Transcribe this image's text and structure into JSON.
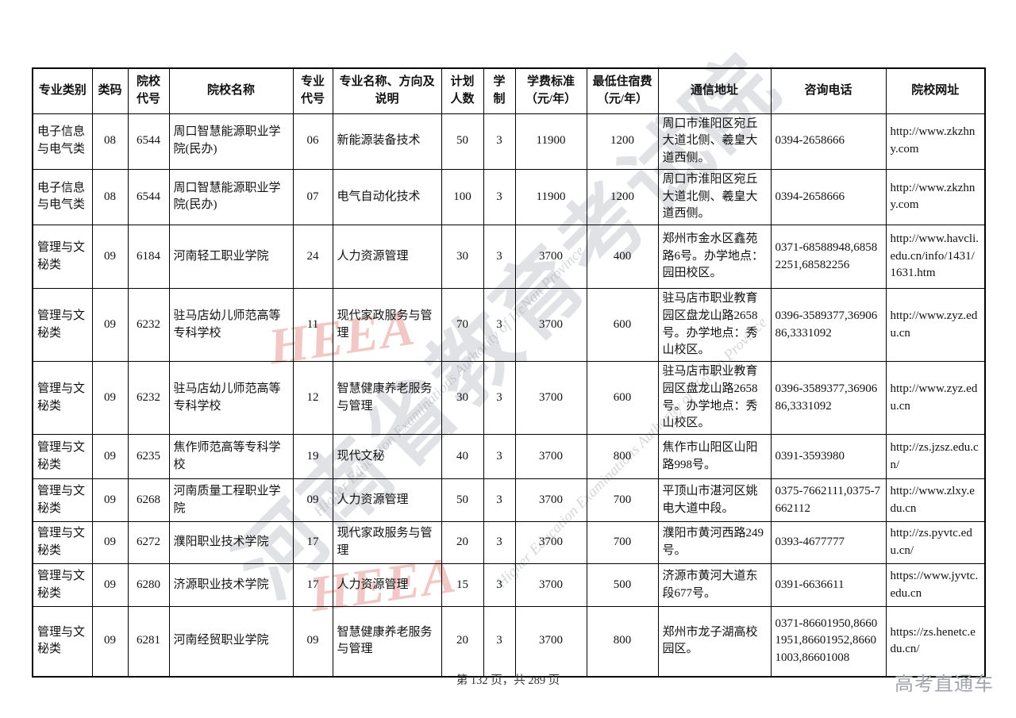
{
  "table": {
    "headers": [
      "专业类别",
      "类码",
      "院校代号",
      "院校名称",
      "专业代号",
      "专业名称、方向及说明",
      "计划人数",
      "学制",
      "学费标准（元/年）",
      "最低住宿费（元/年）",
      "通信地址",
      "咨询电话",
      "院校网址"
    ],
    "rows": [
      [
        "电子信息与电气类",
        "08",
        "6544",
        "周口智慧能源职业学院(民办)",
        "06",
        "新能源装备技术",
        "50",
        "3",
        "11900",
        "1200",
        "周口市淮阳区宛丘大道北侧、羲皇大道西侧。",
        "0394-2658666",
        "http://www.zkzhny.com"
      ],
      [
        "电子信息与电气类",
        "08",
        "6544",
        "周口智慧能源职业学院(民办)",
        "07",
        "电气自动化技术",
        "100",
        "3",
        "11900",
        "1200",
        "周口市淮阳区宛丘大道北侧、羲皇大道西侧。",
        "0394-2658666",
        "http://www.zkzhny.com"
      ],
      [
        "管理与文秘类",
        "09",
        "6184",
        "河南轻工职业学院",
        "24",
        "人力资源管理",
        "30",
        "3",
        "3700",
        "400",
        "郑州市金水区鑫苑路6号。办学地点：园田校区。",
        "0371-68588948,68582251,68582256",
        "http://www.havcli.edu.cn/info/1431/1631.htm"
      ],
      [
        "管理与文秘类",
        "09",
        "6232",
        "驻马店幼儿师范高等专科学校",
        "11",
        "现代家政服务与管理",
        "70",
        "3",
        "3700",
        "600",
        "驻马店市职业教育园区盘龙山路2658号。办学地点：秀山校区。",
        "0396-3589377,3690686,3331092",
        "http://www.zyz.edu.cn"
      ],
      [
        "管理与文秘类",
        "09",
        "6232",
        "驻马店幼儿师范高等专科学校",
        "12",
        "智慧健康养老服务与管理",
        "30",
        "3",
        "3700",
        "600",
        "驻马店市职业教育园区盘龙山路2658号。办学地点：秀山校区。",
        "0396-3589377,3690686,3331092",
        "http://www.zyz.edu.cn"
      ],
      [
        "管理与文秘类",
        "09",
        "6235",
        "焦作师范高等专科学校",
        "19",
        "现代文秘",
        "40",
        "3",
        "3700",
        "800",
        "焦作市山阳区山阳路998号。",
        "0391-3593980",
        "http://zs.jzsz.edu.cn/"
      ],
      [
        "管理与文秘类",
        "09",
        "6268",
        "河南质量工程职业学院",
        "09",
        "人力资源管理",
        "50",
        "3",
        "3700",
        "700",
        "平顶山市湛河区姚电大道中段。",
        "0375-7662111,0375-7662112",
        "http://www.zlxy.edu.cn"
      ],
      [
        "管理与文秘类",
        "09",
        "6272",
        "濮阳职业技术学院",
        "17",
        "现代家政服务与管理",
        "20",
        "3",
        "3700",
        "700",
        "濮阳市黄河西路249号。",
        "0393-4677777",
        "http://zs.pyvtc.edu.cn/"
      ],
      [
        "管理与文秘类",
        "09",
        "6280",
        "济源职业技术学院",
        "17",
        "人力资源管理",
        "15",
        "3",
        "3700",
        "500",
        "济源市黄河大道东段677号。",
        "0391-6636611",
        "https://www.jyvtc.edu.cn"
      ],
      [
        "管理与文秘类",
        "09",
        "6281",
        "河南经贸职业学院",
        "09",
        "智慧健康养老服务与管理",
        "20",
        "3",
        "3700",
        "800",
        "郑州市龙子湖高校园区。",
        "0371-86601950,86601951,86601952,86601003,86601008",
        "https://zs.henetc.edu.cn/"
      ]
    ]
  },
  "footer": {
    "page_info": "第 132 页，共 289 页",
    "brand": "高考直通车"
  },
  "watermark": {
    "diagonal_text_cn": "河南省教育考试院",
    "diagonal_text_en": "Higher Education Examinations Authority of HeNan Province",
    "logo_text": "HEEA"
  },
  "colors": {
    "table_border": "#000000",
    "watermark_gray": "#afb4ba",
    "watermark_red": "#d24a43",
    "brand_gray": "#a0a6ab",
    "footer_text": "#333333"
  }
}
